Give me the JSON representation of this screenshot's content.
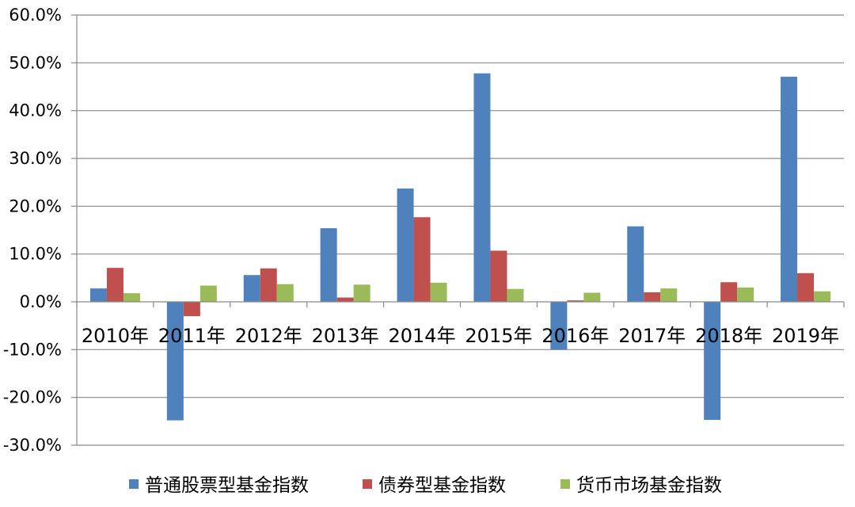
{
  "chart_data": {
    "type": "bar",
    "categories": [
      "2010年",
      "2011年",
      "2012年",
      "2013年",
      "2014年",
      "2015年",
      "2016年",
      "2017年",
      "2018年",
      "2019年"
    ],
    "series": [
      {
        "name": "普通股票型基金指数",
        "color": "#4F81BD",
        "values": [
          2.8,
          -24.8,
          5.6,
          15.4,
          23.7,
          47.8,
          -10.0,
          15.8,
          -24.7,
          47.1
        ]
      },
      {
        "name": "债券型基金指数",
        "color": "#C0504D",
        "values": [
          7.1,
          -3.0,
          7.0,
          0.9,
          17.7,
          10.7,
          0.3,
          2.0,
          4.1,
          6.0
        ]
      },
      {
        "name": "货币市场基金指数",
        "color": "#9BBB59",
        "values": [
          1.8,
          3.4,
          3.7,
          3.6,
          4.0,
          2.7,
          1.9,
          2.8,
          3.0,
          2.2
        ]
      }
    ],
    "ylim": [
      -30,
      60
    ],
    "yticks": [
      "-30.0%",
      "-20.0%",
      "-10.0%",
      "0.0%",
      "10.0%",
      "20.0%",
      "30.0%",
      "40.0%",
      "50.0%",
      "60.0%"
    ],
    "grid": true,
    "legend_position": "bottom"
  }
}
